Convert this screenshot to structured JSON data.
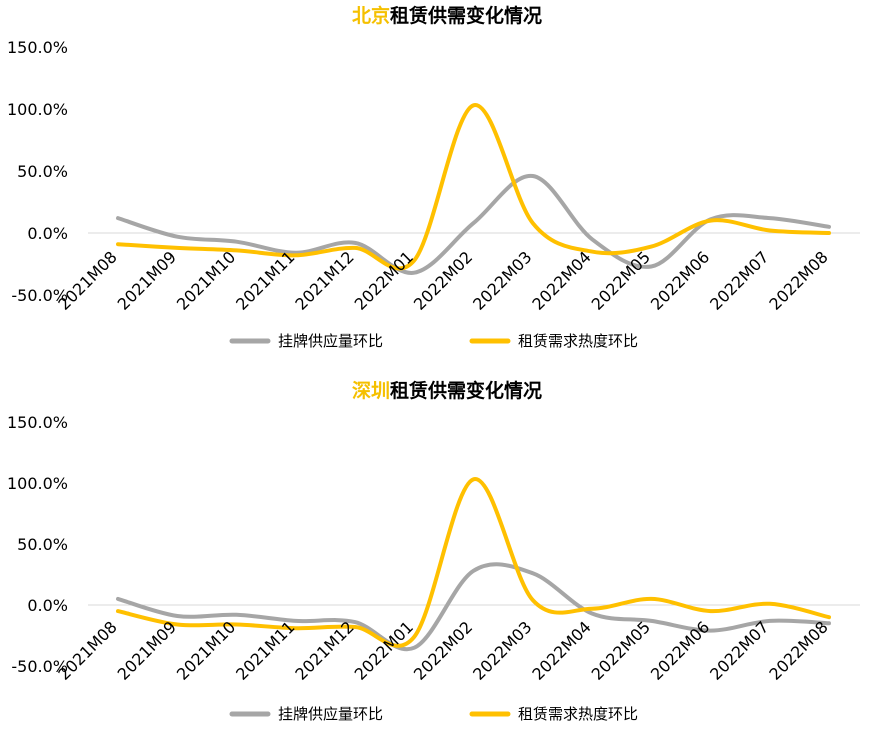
{
  "chart_data": [
    {
      "type": "line",
      "title_highlight": "北京",
      "title_rest": "租赁供需变化情况",
      "categories": [
        "2021M08",
        "2021M09",
        "2021M10",
        "2021M11",
        "2021M12",
        "2022M01",
        "2022M02",
        "2022M03",
        "2022M04",
        "2022M05",
        "2022M06",
        "2022M07",
        "2022M08"
      ],
      "y_ticks": [
        "150.0%",
        "100.0%",
        "50.0%",
        "0.0%",
        "-50.0%"
      ],
      "ylim": [
        -50,
        150
      ],
      "legend_position": "bottom",
      "grid": false,
      "series": [
        {
          "name": "挂牌供应量环比",
          "color": "#a6a6a6",
          "values": [
            12,
            -3,
            -7,
            -16,
            -8,
            -32,
            8,
            46,
            -5,
            -27,
            11,
            12,
            5
          ]
        },
        {
          "name": "租赁需求热度环比",
          "color": "#ffc000",
          "values": [
            -9,
            -12,
            -14,
            -18,
            -12,
            -22,
            103,
            8,
            -15,
            -11,
            10,
            2,
            0
          ]
        }
      ]
    },
    {
      "type": "line",
      "title_highlight": "深圳",
      "title_rest": "租赁供需变化情况",
      "categories": [
        "2021M08",
        "2021M09",
        "2021M10",
        "2021M11",
        "2021M12",
        "2022M01",
        "2022M02",
        "2022M03",
        "2022M04",
        "2022M05",
        "2022M06",
        "2022M07",
        "2022M08"
      ],
      "y_ticks": [
        "150.0%",
        "100.0%",
        "50.0%",
        "0.0%",
        "-50.0%"
      ],
      "ylim": [
        -50,
        150
      ],
      "legend_position": "bottom",
      "grid": false,
      "series": [
        {
          "name": "挂牌供应量环比",
          "color": "#a6a6a6",
          "values": [
            5,
            -9,
            -8,
            -13,
            -14,
            -35,
            28,
            26,
            -7,
            -13,
            -21,
            -13,
            -15
          ]
        },
        {
          "name": "租赁需求热度环比",
          "color": "#ffc000",
          "values": [
            -5,
            -16,
            -16,
            -19,
            -18,
            -26,
            103,
            4,
            -3,
            5,
            -5,
            1,
            -10
          ]
        }
      ]
    }
  ]
}
